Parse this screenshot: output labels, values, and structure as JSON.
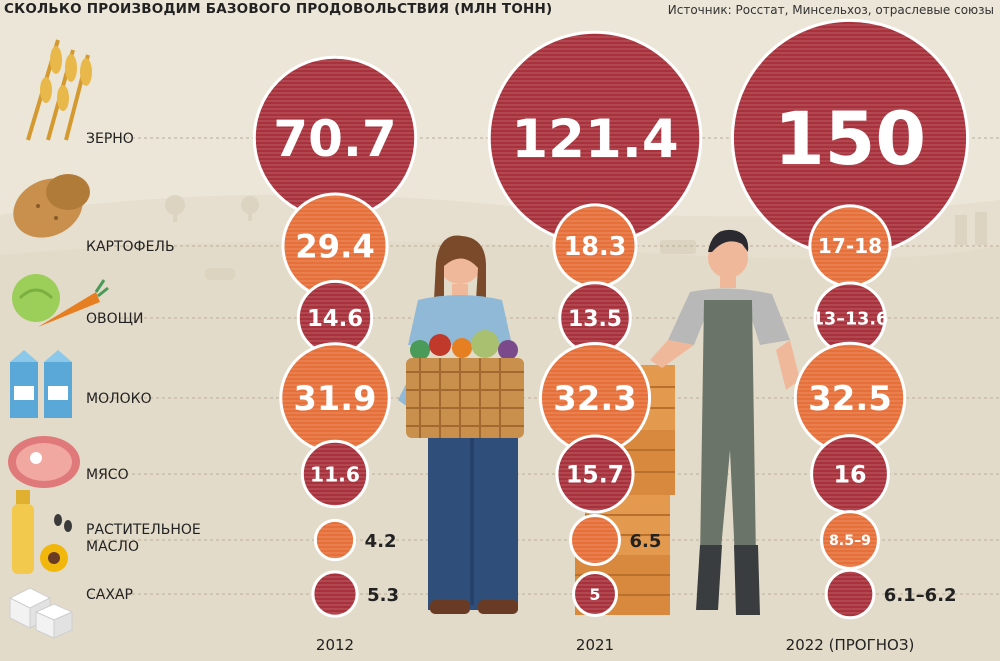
{
  "header": {
    "title": "СКОЛЬКО ПРОИЗВОДИМ БАЗОВОГО ПРОДОВОЛЬСТВИЯ (МЛН ТОНН)",
    "source": "Источник: Росстат, Минсельхоз, отраслевые союзы"
  },
  "colors": {
    "background": "#ece6d8",
    "red": "#a8323c",
    "orange": "#e6703a",
    "text_dark": "#222222"
  },
  "chart_data": {
    "type": "bubble",
    "title": "СКОЛЬКО ПРОИЗВОДИМ БАЗОВОГО ПРОДОВОЛЬСТВИЯ (МЛН ТОНН)",
    "years": [
      "2012",
      "2021",
      "2022 (ПРОГНОЗ)"
    ],
    "categories": [
      {
        "name": "ЗЕРНО",
        "icon": "wheat-icon",
        "color": "red",
        "values": [
          70.7,
          121.4,
          150
        ],
        "labels": [
          "70.7",
          "121.4",
          "150"
        ]
      },
      {
        "name": "КАРТОФЕЛЬ",
        "icon": "potato-icon",
        "color": "orange",
        "values": [
          29.4,
          18.3,
          17.5
        ],
        "labels": [
          "29.4",
          "18.3",
          "17-18"
        ]
      },
      {
        "name": "ОВОЩИ",
        "icon": "vegetables-icon",
        "color": "red",
        "values": [
          14.6,
          13.5,
          13.3
        ],
        "labels": [
          "14.6",
          "13.5",
          "13–13.6"
        ]
      },
      {
        "name": "МОЛОКО",
        "icon": "milk-icon",
        "color": "orange",
        "values": [
          31.9,
          32.3,
          32.5
        ],
        "labels": [
          "31.9",
          "32.3",
          "32.5"
        ]
      },
      {
        "name": "МЯСО",
        "icon": "meat-icon",
        "color": "red",
        "values": [
          11.6,
          15.7,
          16
        ],
        "labels": [
          "11.6",
          "15.7",
          "16"
        ]
      },
      {
        "name": "РАСТИТЕЛЬНОЕ МАСЛО",
        "icon": "sunflower-oil-icon",
        "color": "orange",
        "values": [
          4.2,
          6.5,
          8.75
        ],
        "labels": [
          "4.2",
          "6.5",
          "8.5–9"
        ]
      },
      {
        "name": "САХАР",
        "icon": "sugar-icon",
        "color": "red",
        "values": [
          5.3,
          5,
          6.15
        ],
        "labels": [
          "5.3",
          "5",
          "6.1–6.2"
        ]
      }
    ]
  }
}
